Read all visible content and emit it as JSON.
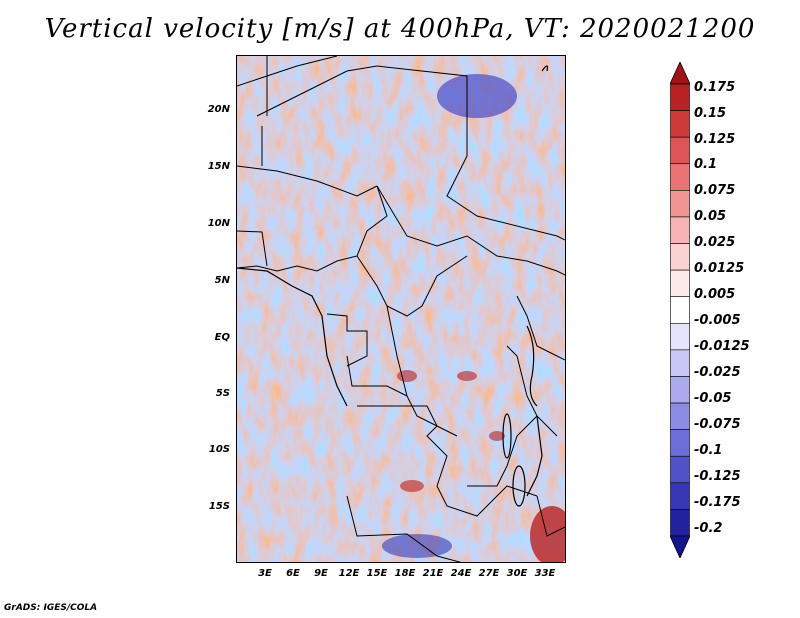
{
  "title": "Vertical velocity [m/s] at 400hPa, VT: 2020021200",
  "footer": "GrADS: IGES/COLA",
  "map": {
    "lon_range": [
      0,
      35
    ],
    "lat_range": [
      -20,
      25
    ],
    "lat_ticks": [
      "20N",
      "15N",
      "10N",
      "5N",
      "EQ",
      "5S",
      "10S",
      "15S"
    ],
    "lat_values": [
      20,
      15,
      10,
      5,
      0,
      -5,
      -10,
      -15
    ],
    "lon_ticks": [
      "3E",
      "6E",
      "9E",
      "12E",
      "15E",
      "18E",
      "21E",
      "24E",
      "27E",
      "30E",
      "33E"
    ],
    "lon_values": [
      3,
      6,
      9,
      12,
      15,
      18,
      21,
      24,
      27,
      30,
      33
    ]
  },
  "colorbar": {
    "labels": [
      "0.175",
      "0.15",
      "0.125",
      "0.1",
      "0.075",
      "0.05",
      "0.025",
      "0.0125",
      "0.005",
      "-0.005",
      "-0.0125",
      "-0.025",
      "-0.05",
      "-0.075",
      "-0.1",
      "-0.125",
      "-0.175",
      "-0.2"
    ],
    "colors": [
      "#a01616",
      "#b82222",
      "#cc3a3a",
      "#dc5656",
      "#e87474",
      "#f09494",
      "#f6b4b4",
      "#fad2d2",
      "#fdeaea",
      "#ffffff",
      "#e4e4fa",
      "#c8c8f4",
      "#aaaaec",
      "#8c8ce4",
      "#6e6ed8",
      "#5252c8",
      "#3838b4",
      "#2222a0",
      "#14148c"
    ]
  }
}
